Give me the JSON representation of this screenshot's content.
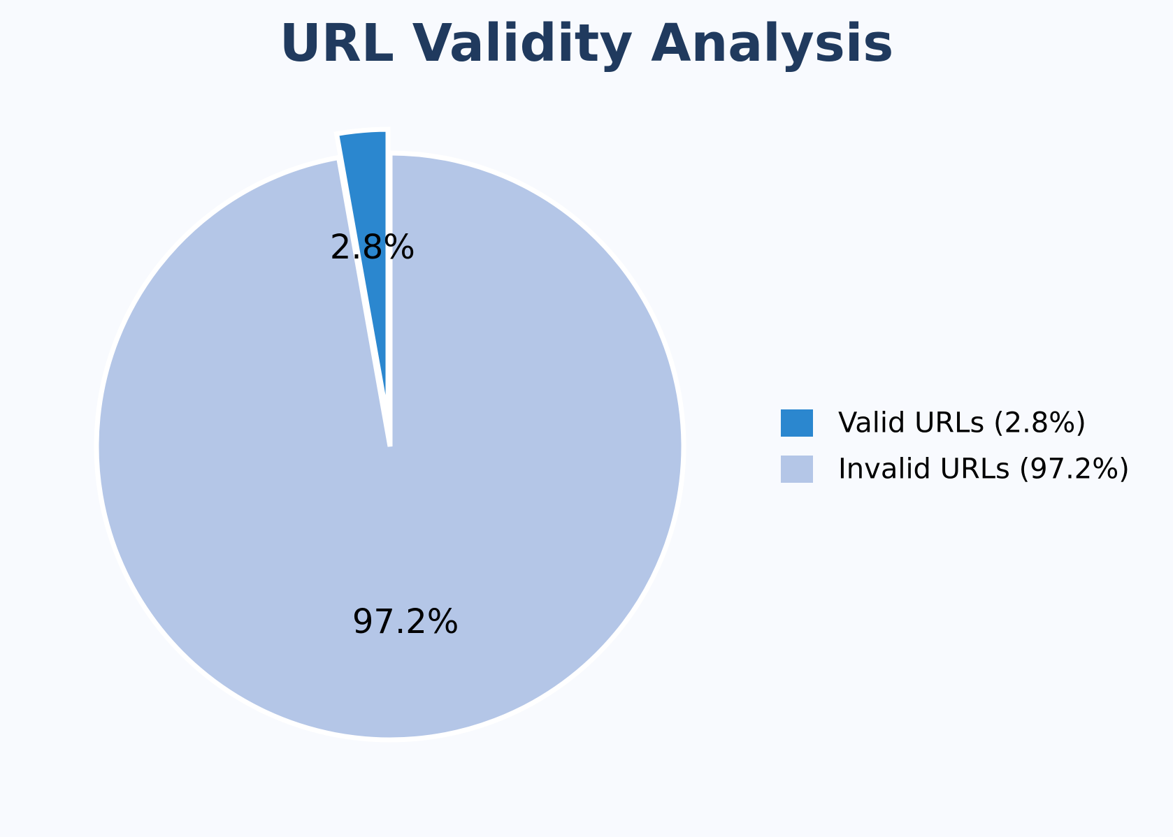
{
  "chart_data": {
    "type": "pie",
    "title": "URL Validity Analysis",
    "slices": [
      {
        "label": "Valid URLs",
        "value": 2.8,
        "pct_label": "2.8%",
        "legend_label": "Valid URLs (2.8%)",
        "color": "#2b87cf",
        "exploded": true
      },
      {
        "label": "Invalid URLs",
        "value": 97.2,
        "pct_label": "97.2%",
        "legend_label": "Invalid URLs (97.2%)",
        "color": "#b4c6e7",
        "exploded": false
      }
    ],
    "legend_position": "right",
    "start": "top",
    "direction": "counterclockwise"
  },
  "colors": {
    "background": "#f8fafe",
    "title": "#203a5e",
    "slice_edge": "#ffffff"
  }
}
